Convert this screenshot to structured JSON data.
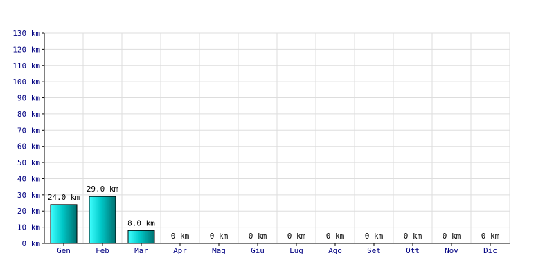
{
  "chart_data": {
    "type": "bar",
    "categories": [
      "Gen",
      "Feb",
      "Mar",
      "Apr",
      "Mag",
      "Giu",
      "Lug",
      "Ago",
      "Set",
      "Ott",
      "Nov",
      "Dic"
    ],
    "values": [
      24.0,
      29.0,
      8.0,
      0,
      0,
      0,
      0,
      0,
      0,
      0,
      0,
      0
    ],
    "data_labels": [
      "24.0 km",
      "29.0 km",
      "8.0 km",
      "0 km",
      "0 km",
      "0 km",
      "0 km",
      "0 km",
      "0 km",
      "0 km",
      "0 km",
      "0 km"
    ],
    "y_ticks": [
      0,
      10,
      20,
      30,
      40,
      50,
      60,
      70,
      80,
      90,
      100,
      110,
      120,
      130
    ],
    "y_tick_labels": [
      "0 km",
      "10 km",
      "20 km",
      "30 km",
      "40 km",
      "50 km",
      "60 km",
      "70 km",
      "80 km",
      "90 km",
      "100 km",
      "110 km",
      "120 km",
      "130 km"
    ],
    "ylim": [
      0,
      130
    ],
    "grid": true,
    "colors": {
      "bar_light": "#40ffff",
      "bar_mid": "#00c8c8",
      "bar_dark": "#006f6f",
      "bar_stroke": "#000000",
      "grid": "#dddddd",
      "axis": "#000000",
      "tick_text": "#000080"
    }
  }
}
